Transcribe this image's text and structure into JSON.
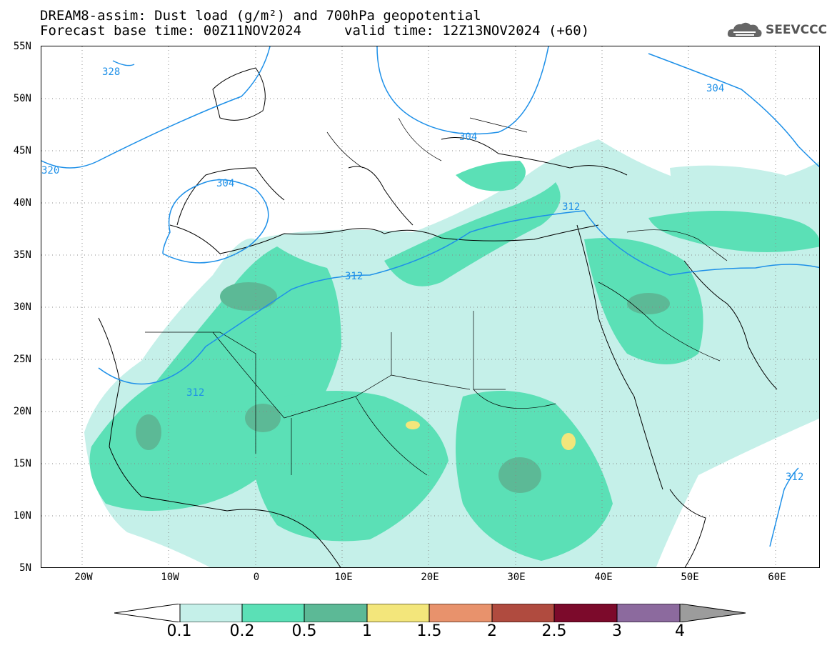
{
  "title": {
    "line1": "DREAM8-assim: Dust load (g/m²) and 700hPa geopotential",
    "line2": "Forecast base time: 00Z11NOV2024",
    "line2b": "valid time: 12Z13NOV2024 (+60)"
  },
  "brand": "SEEVCCC",
  "lat_labels": [
    "55N",
    "50N",
    "45N",
    "40N",
    "35N",
    "30N",
    "25N",
    "20N",
    "15N",
    "10N",
    "5N"
  ],
  "lon_labels": [
    "20W",
    "10W",
    "0",
    "10E",
    "20E",
    "30E",
    "40E",
    "50E",
    "60E"
  ],
  "contour_labels": [
    "328",
    "320",
    "304",
    "304",
    "304",
    "312",
    "312",
    "312",
    "312"
  ],
  "colorbar": {
    "labels": [
      "0.1",
      "0.2",
      "0.5",
      "1",
      "1.5",
      "2",
      "2.5",
      "3",
      "4"
    ],
    "colors": [
      "#ffffff",
      "#c5f0e9",
      "#5be0b6",
      "#5cb996",
      "#f3e67b",
      "#e8926c",
      "#b04b3f",
      "#7c0a2b",
      "#8c6a9e",
      "#9c9c9c"
    ]
  },
  "colors": {
    "dust_low": "#c5f0e9",
    "dust_mid": "#5be0b6",
    "dust_high": "#5cb996",
    "dust_peak": "#f3e67b",
    "contour": "#1e90e8"
  }
}
